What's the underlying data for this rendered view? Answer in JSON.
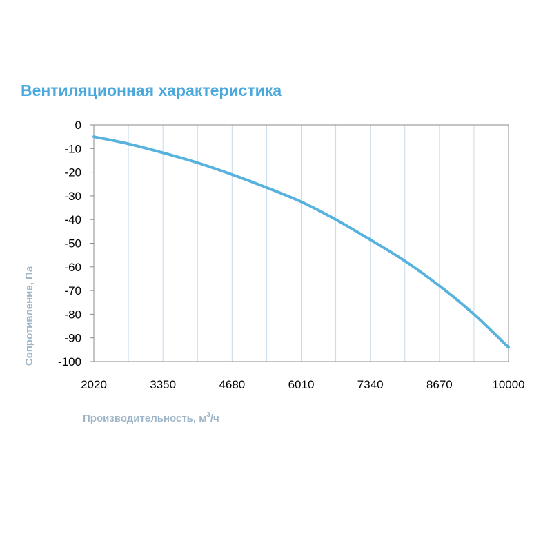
{
  "chart_data": {
    "type": "line",
    "title": "Вентиляционная характеристика",
    "xlabel": "Производительность, м",
    "xlabel_sup": "3",
    "xlabel_suffix": "/ч",
    "ylabel": "Сопротивление, Па",
    "x_ticks": [
      "2020",
      "3350",
      "4680",
      "6010",
      "7340",
      "8670",
      "10000"
    ],
    "y_ticks": [
      "0",
      "-10",
      "-20",
      "-30",
      "-40",
      "-50",
      "-60",
      "-70",
      "-80",
      "-90",
      "-100"
    ],
    "xlim": [
      2020,
      10000
    ],
    "ylim": [
      -100,
      0
    ],
    "grid": true,
    "line_color": "#58b2de",
    "grid_color": "#c9daea",
    "title_color": "#4aa8dc",
    "axis_title_color": "#9fb6c8",
    "series": [
      {
        "x": [
          2020,
          2685,
          3350,
          4015,
          4680,
          5345,
          6010,
          6675,
          7340,
          8005,
          8670,
          9335,
          10000
        ],
        "y": [
          -5,
          -8,
          -11.8,
          -16,
          -21,
          -26.5,
          -32.5,
          -40,
          -48.5,
          -57.5,
          -68,
          -80,
          -94
        ]
      }
    ]
  }
}
